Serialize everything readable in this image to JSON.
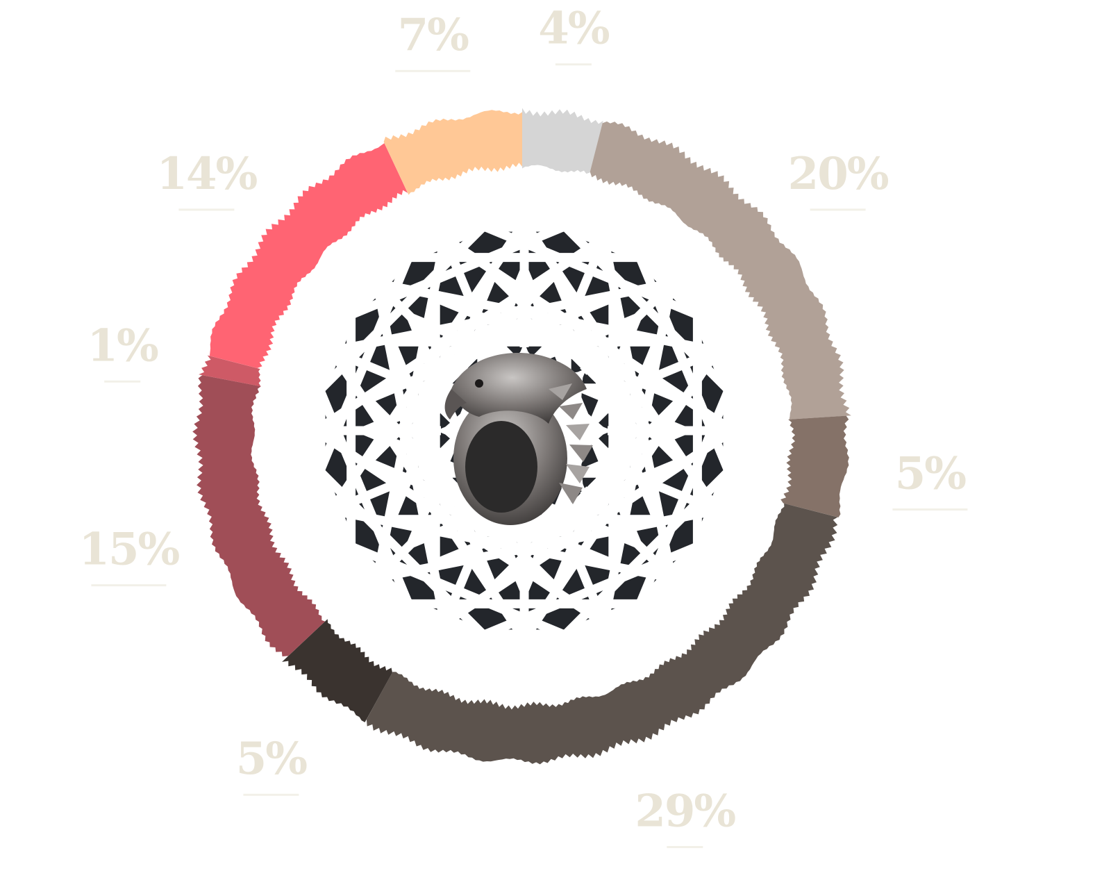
{
  "chart_data": {
    "type": "pie",
    "title": "",
    "segments": [
      {
        "value": 4,
        "label": "4%",
        "color": "#d5d5d5"
      },
      {
        "value": 20,
        "label": "20%",
        "color": "#b1a197"
      },
      {
        "value": 5,
        "label": "5%",
        "color": "#857268"
      },
      {
        "value": 29,
        "label": "29%",
        "color": "#5c534d"
      },
      {
        "value": 5,
        "label": "5%",
        "color": "#3a332f"
      },
      {
        "value": 15,
        "label": "15%",
        "color": "#a04e57"
      },
      {
        "value": 1,
        "label": "1%",
        "color": "#ce5a66"
      },
      {
        "value": 14,
        "label": "14%",
        "color": "#ff6473"
      },
      {
        "value": 7,
        "label": "7%",
        "color": "#ffc896"
      }
    ],
    "label_color": "#e9e4d6",
    "center_graphic": "geometric-star-pattern-with-falcon-ring"
  }
}
